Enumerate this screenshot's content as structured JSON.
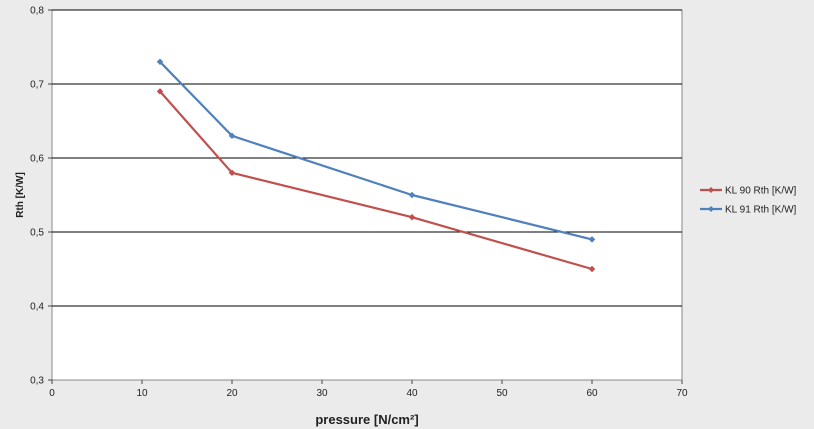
{
  "chart_data": {
    "type": "line",
    "title": "",
    "xlabel": "pressure [N/cm²]",
    "ylabel": "Rth [K/W]",
    "xlim": [
      0,
      70
    ],
    "ylim": [
      0.3,
      0.8
    ],
    "x_ticks": [
      "0",
      "10",
      "20",
      "30",
      "40",
      "50",
      "60",
      "70"
    ],
    "y_ticks": [
      "0,3",
      "0,4",
      "0,5",
      "0,6",
      "0,7",
      "0,8"
    ],
    "grid": "horizontal",
    "legend_position": "right",
    "series": [
      {
        "name": "KL 90 Rth [K/W]",
        "color": "#c0504d",
        "marker": "diamond",
        "x": [
          12,
          20,
          40,
          60
        ],
        "y": [
          0.69,
          0.58,
          0.52,
          0.45
        ]
      },
      {
        "name": "KL 91 Rth [K/W]",
        "color": "#4f81bd",
        "marker": "diamond",
        "x": [
          12,
          20,
          40,
          60
        ],
        "y": [
          0.73,
          0.63,
          0.55,
          0.49
        ]
      }
    ]
  }
}
